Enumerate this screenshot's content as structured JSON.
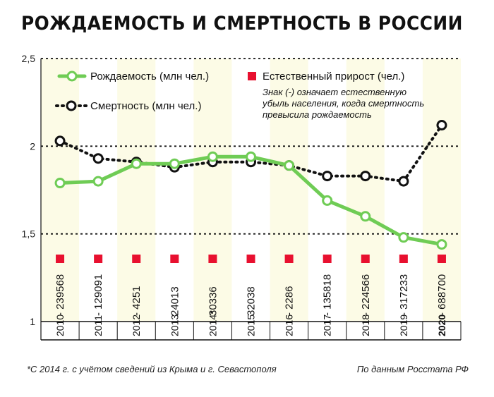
{
  "title": "РОЖДАЕМОСТЬ И СМЕРТНОСТЬ В РОССИИ",
  "footnote_left": "*С 2014 г. с учётом сведений из Крыма и г. Севастополя",
  "footnote_right": "По данным Росстата РФ",
  "colors": {
    "births": "#6fcc55",
    "deaths": "#111111",
    "growth_marker": "#e8102f",
    "stripe": "#fcfbe6",
    "grid": "#111111"
  },
  "chart_data": {
    "type": "line",
    "title": "РОЖДАЕМОСТЬ И СМЕРТНОСТЬ В РОССИИ",
    "categories": [
      "2010",
      "2011",
      "2012",
      "2013",
      "2014*",
      "2015",
      "2016",
      "2017",
      "2018",
      "2019",
      "2020"
    ],
    "ylim": [
      1,
      2.5
    ],
    "yticks": [
      "1",
      "1,5",
      "2",
      "2,5"
    ],
    "ytick_values": [
      1,
      1.5,
      2,
      2.5
    ],
    "series": [
      {
        "name": "Рождаемость (млн чел.)",
        "values": [
          1.79,
          1.8,
          1.9,
          1.9,
          1.94,
          1.94,
          1.89,
          1.69,
          1.6,
          1.48,
          1.44
        ]
      },
      {
        "name": "Смертность (млн чел.)",
        "values": [
          2.03,
          1.93,
          1.91,
          1.88,
          1.91,
          1.91,
          1.89,
          1.83,
          1.83,
          1.8,
          2.12
        ]
      }
    ],
    "growth_series": {
      "name": "Естественный прирост (чел.)",
      "labels": [
        "- 239568",
        "- 129091",
        "- 4251",
        "24013",
        "30336",
        "32038",
        "- 2286",
        "- 135818",
        "- 224566",
        "- 317233",
        "- 688700"
      ]
    },
    "legend": {
      "births": "Рождаемость (млн чел.)",
      "deaths": "Смертность (млн чел.)",
      "growth": "Естественный прирост (чел.)",
      "note_lines": [
        "Знак (-) означает естественную",
        "убыль населения, когда смертность",
        "превысила рождаемость"
      ]
    }
  }
}
